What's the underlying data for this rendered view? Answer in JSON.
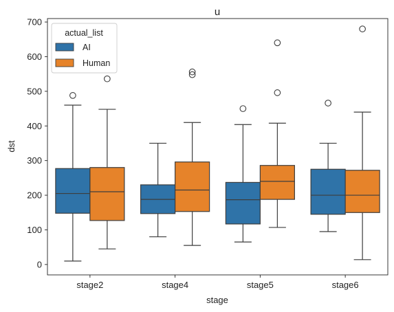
{
  "chart_data": {
    "type": "box",
    "title": "u",
    "xlabel": "stage",
    "ylabel": "dst",
    "categories": [
      "stage2",
      "stage4",
      "stage5",
      "stage6"
    ],
    "ylim": [
      -30,
      710
    ],
    "yticks": [
      0,
      100,
      200,
      300,
      400,
      500,
      600,
      700
    ],
    "grid": false,
    "legend": {
      "title": "actual_list",
      "placement": "top-left",
      "entries": [
        "AI",
        "Human"
      ]
    },
    "series": [
      {
        "name": "AI",
        "color": "#2f73a8",
        "boxes": [
          {
            "category": "stage2",
            "whisker_low": 10,
            "q1": 148,
            "median": 205,
            "q3": 277,
            "whisker_high": 460,
            "outliers": [
              488
            ]
          },
          {
            "category": "stage4",
            "whisker_low": 80,
            "q1": 147,
            "median": 188,
            "q3": 230,
            "whisker_high": 350,
            "outliers": []
          },
          {
            "category": "stage5",
            "whisker_low": 65,
            "q1": 117,
            "median": 187,
            "q3": 237,
            "whisker_high": 404,
            "outliers": [
              450
            ]
          },
          {
            "category": "stage6",
            "whisker_low": 95,
            "q1": 145,
            "median": 200,
            "q3": 275,
            "whisker_high": 350,
            "outliers": [
              466
            ]
          }
        ]
      },
      {
        "name": "Human",
        "color": "#e6832a",
        "boxes": [
          {
            "category": "stage2",
            "whisker_low": 45,
            "q1": 127,
            "median": 210,
            "q3": 280,
            "whisker_high": 448,
            "outliers": [
              536
            ]
          },
          {
            "category": "stage4",
            "whisker_low": 55,
            "q1": 153,
            "median": 215,
            "q3": 296,
            "whisker_high": 410,
            "outliers": [
              548,
              556
            ]
          },
          {
            "category": "stage5",
            "whisker_low": 107,
            "q1": 188,
            "median": 240,
            "q3": 286,
            "whisker_high": 408,
            "outliers": [
              496,
              640
            ]
          },
          {
            "category": "stage6",
            "whisker_low": 14,
            "q1": 150,
            "median": 200,
            "q3": 272,
            "whisker_high": 440,
            "outliers": [
              680
            ]
          }
        ]
      }
    ]
  }
}
